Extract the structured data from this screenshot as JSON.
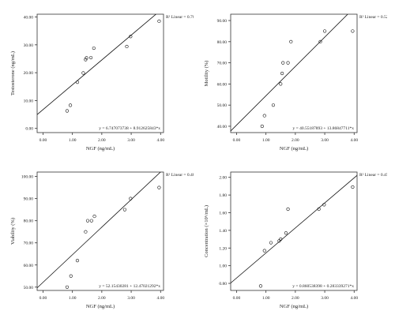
{
  "chart_data": [
    {
      "type": "scatter",
      "title": "",
      "xlabel": "NGF (ng/mL)",
      "ylabel": "Testosterone (ng/mL)",
      "r2_label": "R² Linear = 0.701",
      "equation": "y = 6.747073738 + 8.912625843*x",
      "xlim": [
        -0.2,
        4.1
      ],
      "ylim": [
        -1.5,
        41
      ],
      "xticks": [
        "0.00",
        "1.00",
        "2.00",
        "3.00",
        "4.00"
      ],
      "yticks": [
        "0.00",
        "10.00",
        "20.00",
        "30.00",
        "40.00"
      ],
      "x": [
        0.82,
        0.93,
        1.17,
        1.37,
        1.45,
        1.48,
        1.63,
        1.73,
        2.85,
        2.98,
        3.95
      ],
      "y": [
        6.3,
        8.3,
        16.6,
        19.9,
        24.7,
        25.3,
        25.4,
        28.8,
        29.4,
        33.0,
        38.5
      ],
      "fit": {
        "intercept": 6.747073738,
        "slope": 8.912625843
      }
    },
    {
      "type": "scatter",
      "title": "",
      "xlabel": "NGF (ng/mL)",
      "ylabel": "Motility (%)",
      "r2_label": "R² Linear = 0.522",
      "equation": "y = 40.55187893 + 13.86847711*x",
      "xlim": [
        -0.2,
        4.1
      ],
      "ylim": [
        37,
        93
      ],
      "xticks": [
        "0.00",
        "1.00",
        "2.00",
        "3.00",
        "4.00"
      ],
      "yticks": [
        "40.00",
        "50.00",
        "60.00",
        "70.00",
        "80.00",
        "90.00"
      ],
      "x": [
        0.87,
        0.95,
        1.25,
        1.5,
        1.55,
        1.58,
        1.75,
        1.85,
        2.85,
        3.0,
        3.95
      ],
      "y": [
        40,
        45,
        50,
        60,
        65,
        70,
        70,
        80,
        80,
        85,
        85
      ],
      "fit": {
        "intercept": 40.55187893,
        "slope": 13.86847711
      }
    },
    {
      "type": "scatter",
      "title": "",
      "xlabel": "NGF (ng/mL)",
      "ylabel": "Viability (%)",
      "r2_label": "R² Linear = 0.484",
      "equation": "y = 52.15430281 + 12.47021292*x",
      "xlim": [
        -0.2,
        4.1
      ],
      "ylim": [
        48.5,
        102
      ],
      "xticks": [
        "0.00",
        "1.00",
        "2.00",
        "3.00",
        "4.00"
      ],
      "yticks": [
        "50.00",
        "60.00",
        "70.00",
        "80.00",
        "90.00",
        "100.00"
      ],
      "x": [
        0.82,
        0.95,
        1.17,
        1.45,
        1.52,
        1.65,
        1.75,
        2.78,
        2.98,
        3.95
      ],
      "y": [
        50,
        55,
        62,
        75,
        80,
        80,
        82,
        85,
        90,
        95
      ],
      "fit": {
        "intercept": 52.15430281,
        "slope": 12.47021292
      }
    },
    {
      "type": "scatter",
      "title": "",
      "xlabel": "NGF (ng/mL)",
      "ylabel": "Concentration (×10⁶/mL)",
      "r2_label": "R² Linear = 0.450",
      "equation": "y = 0.860538398 + 0.283339271*x",
      "xlim": [
        -0.2,
        4.1
      ],
      "ylim": [
        0.72,
        2.06
      ],
      "xticks": [
        "0.00",
        "1.00",
        "2.00",
        "3.00",
        "4.00"
      ],
      "yticks": [
        "0.80",
        "1.00",
        "1.20",
        "1.40",
        "1.60",
        "1.80",
        "2.00"
      ],
      "x": [
        0.82,
        0.95,
        1.17,
        1.45,
        1.5,
        1.68,
        1.75,
        2.8,
        2.98,
        3.95
      ],
      "y": [
        0.77,
        1.17,
        1.26,
        1.28,
        1.3,
        1.37,
        1.64,
        1.64,
        1.69,
        1.89
      ],
      "fit": {
        "intercept": 0.860538398,
        "slope": 0.283339271
      }
    }
  ]
}
